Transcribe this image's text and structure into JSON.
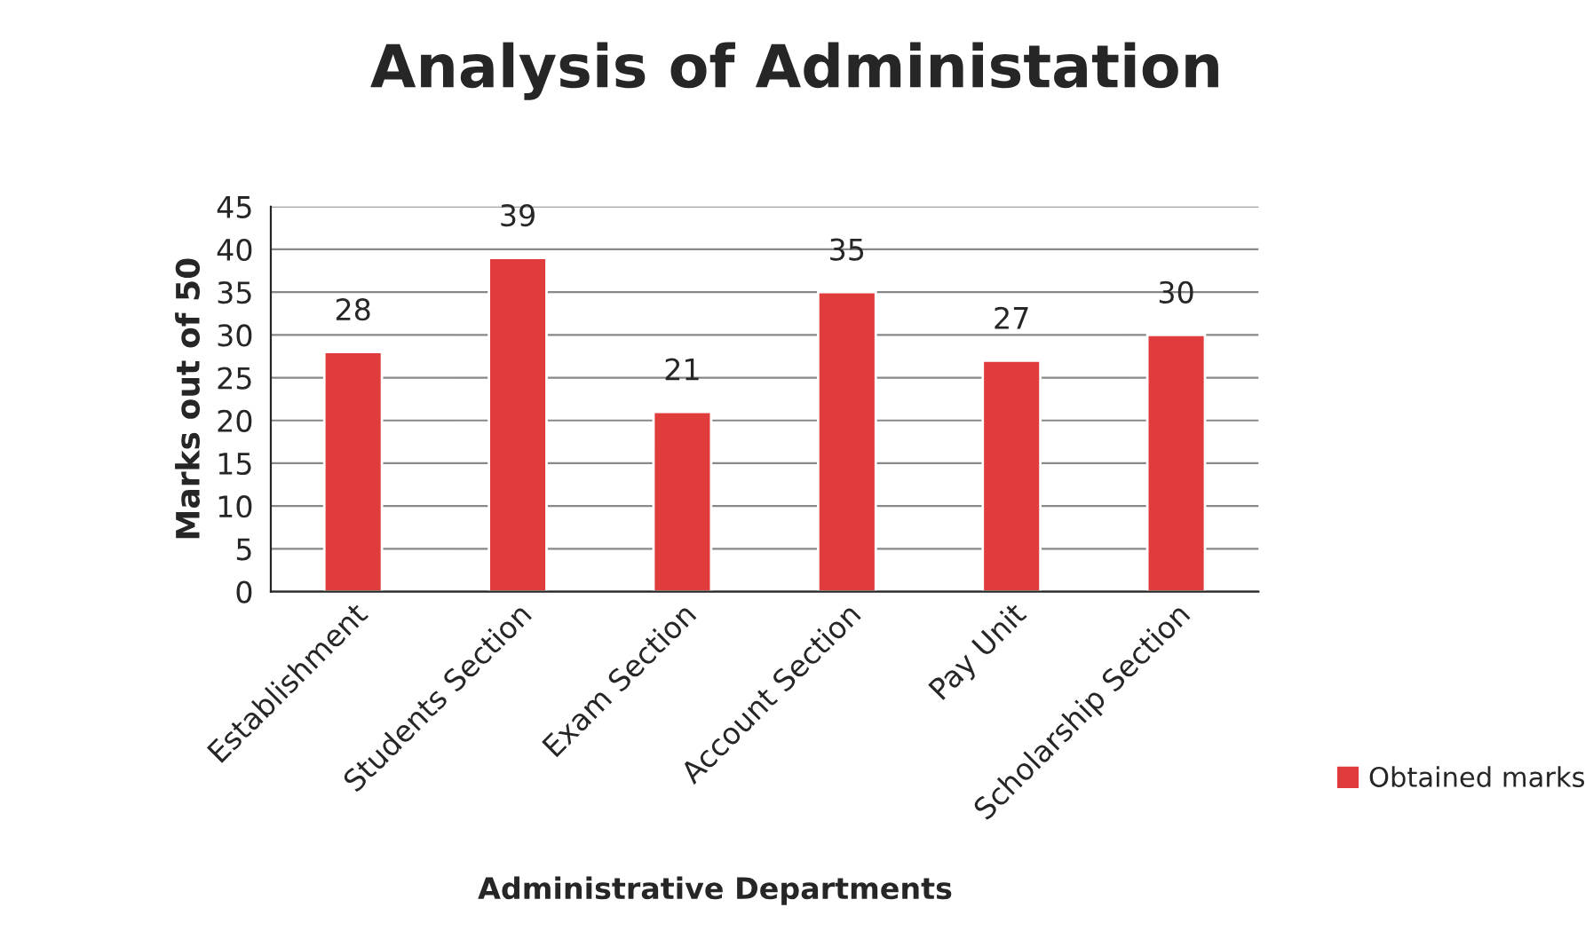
{
  "chart_data": {
    "type": "bar",
    "title": "Analysis of Administation",
    "xlabel": "Administrative Departments",
    "ylabel": "Marks out of 50",
    "categories": [
      "Establishment",
      "Students Section",
      "Exam Section",
      "Account Section",
      "Pay Unit",
      "Scholarship Section"
    ],
    "series": [
      {
        "name": "Obtained marks",
        "color": "#e03c3c",
        "values": [
          28,
          39,
          21,
          35,
          27,
          30
        ]
      }
    ],
    "ylim": [
      0,
      45
    ],
    "yticks": [
      0,
      5,
      10,
      15,
      20,
      25,
      30,
      35,
      40,
      45
    ],
    "grid": "y",
    "data_labels": true,
    "legend": "right"
  }
}
